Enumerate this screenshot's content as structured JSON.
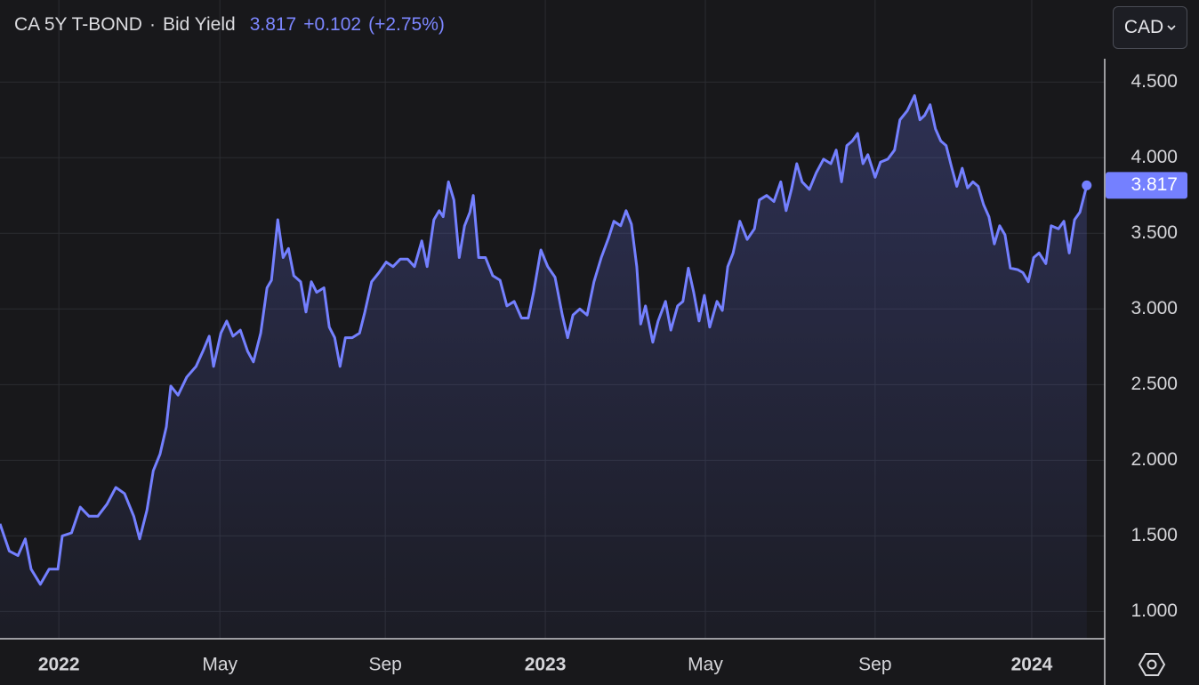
{
  "chart_data": {
    "type": "line",
    "title": "CA 5Y T-BOND",
    "change": "+0.102",
    "change_pct": "(+2.75%)",
    "currency": "CAD",
    "x": [
      2021.879,
      2021.898,
      2021.916,
      2021.931,
      2021.943,
      2021.962,
      2021.98,
      2021.998,
      2022.007,
      2022.026,
      2022.044,
      2022.062,
      2022.08,
      2022.099,
      2022.117,
      2022.135,
      2022.154,
      2022.166,
      2022.181,
      2022.194,
      2022.208,
      2022.221,
      2022.23,
      2022.245,
      2022.263,
      2022.282,
      2022.296,
      2022.309,
      2022.318,
      2022.333,
      2022.345,
      2022.358,
      2022.373,
      2022.388,
      2022.4,
      2022.415,
      2022.428,
      2022.437,
      2022.45,
      2022.461,
      2022.472,
      2022.483,
      2022.497,
      2022.508,
      2022.519,
      2022.53,
      2022.545,
      2022.556,
      2022.567,
      2022.578,
      2022.589,
      2022.603,
      2022.618,
      2022.629,
      2022.643,
      2022.658,
      2022.673,
      2022.687,
      2022.702,
      2022.717,
      2022.731,
      2022.746,
      2022.757,
      2022.771,
      2022.782,
      2022.79,
      2022.801,
      2022.812,
      2022.823,
      2022.834,
      2022.845,
      2022.852,
      2022.863,
      2022.877,
      2022.892,
      2022.907,
      2022.921,
      2022.936,
      2022.951,
      2022.965,
      2022.976,
      2022.991,
      2023.005,
      2023.02,
      2023.035,
      2023.046,
      2023.057,
      2023.071,
      2023.086,
      2023.1,
      2023.115,
      2023.13,
      2023.141,
      2023.155,
      2023.166,
      2023.177,
      2023.188,
      2023.196,
      2023.206,
      2023.221,
      2023.232,
      2023.247,
      2023.258,
      2023.272,
      2023.283,
      2023.294,
      2023.305,
      2023.316,
      2023.327,
      2023.338,
      2023.353,
      2023.364,
      2023.375,
      2023.386,
      2023.4,
      2023.415,
      2023.43,
      2023.44,
      2023.455,
      2023.47,
      2023.484,
      2023.495,
      2023.506,
      2023.517,
      2023.528,
      2023.543,
      2023.557,
      2023.572,
      2023.587,
      2023.598,
      2023.609,
      2023.62,
      2023.631,
      2023.642,
      2023.653,
      2023.663,
      2023.678,
      2023.689,
      2023.704,
      2023.718,
      2023.729,
      2023.744,
      2023.759,
      2023.77,
      2023.78,
      2023.791,
      2023.802,
      2023.813,
      2023.824,
      2023.835,
      2023.846,
      2023.857,
      2023.868,
      2023.879,
      2023.89,
      2023.901,
      2023.912,
      2023.923,
      2023.934,
      2023.945,
      2023.956,
      2023.971,
      2023.982,
      2023.993,
      2024.004,
      2024.015,
      2024.029,
      2024.04,
      2024.055,
      2024.066,
      2024.077,
      2024.088,
      2024.099,
      2024.113
    ],
    "series": [
      {
        "name": "Bid Yield",
        "color": "#7480ff",
        "values": [
          1.58,
          1.4,
          1.37,
          1.48,
          1.28,
          1.18,
          1.28,
          1.28,
          1.5,
          1.52,
          1.69,
          1.63,
          1.63,
          1.71,
          1.82,
          1.78,
          1.63,
          1.48,
          1.67,
          1.93,
          2.04,
          2.22,
          2.49,
          2.43,
          2.55,
          2.62,
          2.72,
          2.82,
          2.62,
          2.84,
          2.92,
          2.82,
          2.86,
          2.72,
          2.65,
          2.84,
          3.14,
          3.19,
          3.59,
          3.34,
          3.4,
          3.22,
          3.18,
          2.98,
          3.18,
          3.11,
          3.14,
          2.88,
          2.81,
          2.62,
          2.81,
          2.81,
          2.84,
          2.98,
          3.18,
          3.24,
          3.31,
          3.28,
          3.33,
          3.33,
          3.28,
          3.45,
          3.28,
          3.59,
          3.65,
          3.61,
          3.84,
          3.72,
          3.34,
          3.55,
          3.64,
          3.75,
          3.34,
          3.34,
          3.22,
          3.19,
          3.02,
          3.05,
          2.94,
          2.94,
          3.11,
          3.39,
          3.28,
          3.21,
          2.96,
          2.81,
          2.96,
          3.0,
          2.96,
          3.18,
          3.34,
          3.47,
          3.58,
          3.55,
          3.65,
          3.56,
          3.28,
          2.9,
          3.02,
          2.78,
          2.92,
          3.05,
          2.86,
          3.02,
          3.05,
          3.27,
          3.11,
          2.92,
          3.09,
          2.88,
          3.05,
          2.99,
          3.28,
          3.37,
          3.58,
          3.46,
          3.53,
          3.72,
          3.75,
          3.71,
          3.84,
          3.65,
          3.79,
          3.96,
          3.84,
          3.79,
          3.9,
          3.99,
          3.96,
          4.05,
          3.84,
          4.08,
          4.11,
          4.16,
          3.96,
          4.02,
          3.87,
          3.97,
          3.99,
          4.05,
          4.25,
          4.31,
          4.41,
          4.25,
          4.28,
          4.35,
          4.19,
          4.11,
          4.08,
          3.94,
          3.81,
          3.93,
          3.8,
          3.84,
          3.81,
          3.69,
          3.61,
          3.43,
          3.55,
          3.49,
          3.27,
          3.26,
          3.24,
          3.18,
          3.34,
          3.37,
          3.3,
          3.55,
          3.53,
          3.58,
          3.37,
          3.59,
          3.64,
          3.817
        ]
      }
    ],
    "xlim": [
      2021.879,
      2024.15
    ],
    "xticks": [
      {
        "value": 2022,
        "label": "2022"
      },
      {
        "value": 2022.331,
        "label": "May"
      },
      {
        "value": 2022.671,
        "label": "Sep"
      },
      {
        "value": 2023,
        "label": "2023"
      },
      {
        "value": 2023.329,
        "label": "May"
      },
      {
        "value": 2023.678,
        "label": "Sep"
      },
      {
        "value": 2024,
        "label": "2024"
      }
    ],
    "ylim": [
      0.82,
      4.66
    ],
    "yticks": [
      {
        "value": 1,
        "label": "1.000"
      },
      {
        "value": 1.5,
        "label": "1.500"
      },
      {
        "value": 2,
        "label": "2.000"
      },
      {
        "value": 2.5,
        "label": "2.500"
      },
      {
        "value": 3,
        "label": "3.000"
      },
      {
        "value": 3.5,
        "label": "3.500"
      },
      {
        "value": 4,
        "label": "4.000"
      },
      {
        "value": 4.5,
        "label": "4.500"
      }
    ],
    "grid": true
  }
}
